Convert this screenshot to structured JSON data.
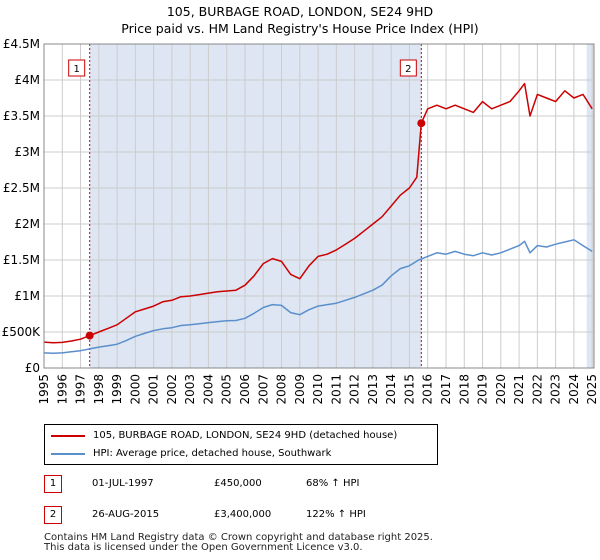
{
  "title_line1": "105, BURBAGE ROAD, LONDON, SE24 9HD",
  "title_line2": "Price paid vs. HM Land Registry's House Price Index (HPI)",
  "colors": {
    "property": "#cc0000",
    "hpi": "#5b8fcc",
    "shade": "#dde6f2",
    "grid": "#cccccc",
    "marker_line": "#cc0000"
  },
  "legend": {
    "property": "105, BURBAGE ROAD, LONDON, SE24 9HD (detached house)",
    "hpi": "HPI: Average price, detached house, Southwark"
  },
  "transactions": [
    {
      "num": "1",
      "date": "01-JUL-1997",
      "price": "£450,000",
      "hpi": "68% ↑ HPI"
    },
    {
      "num": "2",
      "date": "26-AUG-2015",
      "price": "£3,400,000",
      "hpi": "122% ↑ HPI"
    }
  ],
  "footer": {
    "line1": "Contains HM Land Registry data © Crown copyright and database right 2025.",
    "line2": "This data is licensed under the Open Government Licence v3.0."
  },
  "chart_data": {
    "type": "line",
    "xlim": [
      1995,
      2025.1
    ],
    "ylim": [
      0,
      4500000
    ],
    "ytick_values": [
      0,
      500000,
      1000000,
      1500000,
      2000000,
      2500000,
      3000000,
      3500000,
      4000000,
      4500000
    ],
    "ytick_labels": [
      "£0",
      "£500K",
      "£1M",
      "£1.5M",
      "£2M",
      "£2.5M",
      "£3M",
      "£3.5M",
      "£4M",
      "£4.5M"
    ],
    "xtick_values": [
      1995,
      1996,
      1997,
      1998,
      1999,
      2000,
      2001,
      2002,
      2003,
      2004,
      2005,
      2006,
      2007,
      2008,
      2009,
      2010,
      2011,
      2012,
      2013,
      2014,
      2015,
      2016,
      2017,
      2018,
      2019,
      2020,
      2021,
      2022,
      2023,
      2024,
      2025
    ],
    "xtick_labels": [
      "1995",
      "1996",
      "1997",
      "1998",
      "1999",
      "2000",
      "2001",
      "2002",
      "2003",
      "2004",
      "2005",
      "2006",
      "2007",
      "2008",
      "2009",
      "2010",
      "2011",
      "2012",
      "2013",
      "2014",
      "2015",
      "2016",
      "2017",
      "2018",
      "2019",
      "2020",
      "2021",
      "2022",
      "2023",
      "2024",
      "2025"
    ],
    "shaded_regions": [
      [
        1997.5,
        2015.65
      ],
      [
        2024.7,
        2025.1
      ]
    ],
    "markers": [
      {
        "label": "1",
        "x": 1997.5,
        "y": 450000
      },
      {
        "label": "2",
        "x": 2015.65,
        "y": 3400000
      }
    ],
    "series": [
      {
        "name": "105, BURBAGE ROAD, LONDON, SE24 9HD (detached house)",
        "x": [
          1995,
          1995.5,
          1996,
          1996.5,
          1997,
          1997.5,
          1998,
          1998.5,
          1999,
          1999.5,
          2000,
          2000.5,
          2001,
          2001.5,
          2002,
          2002.5,
          2003,
          2003.5,
          2004,
          2004.5,
          2005,
          2005.5,
          2006,
          2006.5,
          2007,
          2007.5,
          2008,
          2008.5,
          2009,
          2009.5,
          2010,
          2010.5,
          2011,
          2011.5,
          2012,
          2012.5,
          2013,
          2013.5,
          2014,
          2014.5,
          2015,
          2015.4,
          2015.65,
          2016,
          2016.5,
          2017,
          2017.5,
          2018,
          2018.5,
          2019,
          2019.5,
          2020,
          2020.5,
          2021,
          2021.3,
          2021.6,
          2022,
          2022.5,
          2023,
          2023.5,
          2024,
          2024.5,
          2025
        ],
        "y": [
          360000,
          350000,
          355000,
          375000,
          400000,
          450000,
          500000,
          550000,
          600000,
          690000,
          780000,
          820000,
          860000,
          920000,
          940000,
          990000,
          1000000,
          1020000,
          1040000,
          1060000,
          1070000,
          1080000,
          1150000,
          1280000,
          1450000,
          1520000,
          1480000,
          1300000,
          1240000,
          1420000,
          1550000,
          1580000,
          1640000,
          1720000,
          1800000,
          1900000,
          2000000,
          2100000,
          2250000,
          2400000,
          2500000,
          2650000,
          3400000,
          3600000,
          3650000,
          3600000,
          3650000,
          3600000,
          3550000,
          3700000,
          3600000,
          3650000,
          3700000,
          3850000,
          3950000,
          3500000,
          3800000,
          3750000,
          3700000,
          3850000,
          3750000,
          3800000,
          3600000
        ]
      },
      {
        "name": "HPI: Average price, detached house, Southwark",
        "x": [
          1995,
          1995.5,
          1996,
          1996.5,
          1997,
          1997.5,
          1998,
          1998.5,
          1999,
          1999.5,
          2000,
          2000.5,
          2001,
          2001.5,
          2002,
          2002.5,
          2003,
          2003.5,
          2004,
          2004.5,
          2005,
          2005.5,
          2006,
          2006.5,
          2007,
          2007.5,
          2008,
          2008.5,
          2009,
          2009.5,
          2010,
          2010.5,
          2011,
          2011.5,
          2012,
          2012.5,
          2013,
          2013.5,
          2014,
          2014.5,
          2015,
          2015.5,
          2016,
          2016.5,
          2017,
          2017.5,
          2018,
          2018.5,
          2019,
          2019.5,
          2020,
          2020.5,
          2021,
          2021.3,
          2021.6,
          2022,
          2022.5,
          2023,
          2023.5,
          2024,
          2024.5,
          2025
        ],
        "y": [
          210000,
          205000,
          210000,
          225000,
          240000,
          265000,
          290000,
          310000,
          330000,
          380000,
          440000,
          480000,
          520000,
          545000,
          560000,
          590000,
          600000,
          615000,
          630000,
          645000,
          655000,
          660000,
          690000,
          760000,
          840000,
          880000,
          870000,
          770000,
          740000,
          810000,
          860000,
          880000,
          900000,
          940000,
          980000,
          1030000,
          1080000,
          1150000,
          1280000,
          1380000,
          1420000,
          1500000,
          1550000,
          1600000,
          1580000,
          1620000,
          1580000,
          1560000,
          1600000,
          1570000,
          1600000,
          1650000,
          1700000,
          1760000,
          1600000,
          1700000,
          1680000,
          1720000,
          1750000,
          1780000,
          1700000,
          1620000
        ]
      }
    ]
  }
}
